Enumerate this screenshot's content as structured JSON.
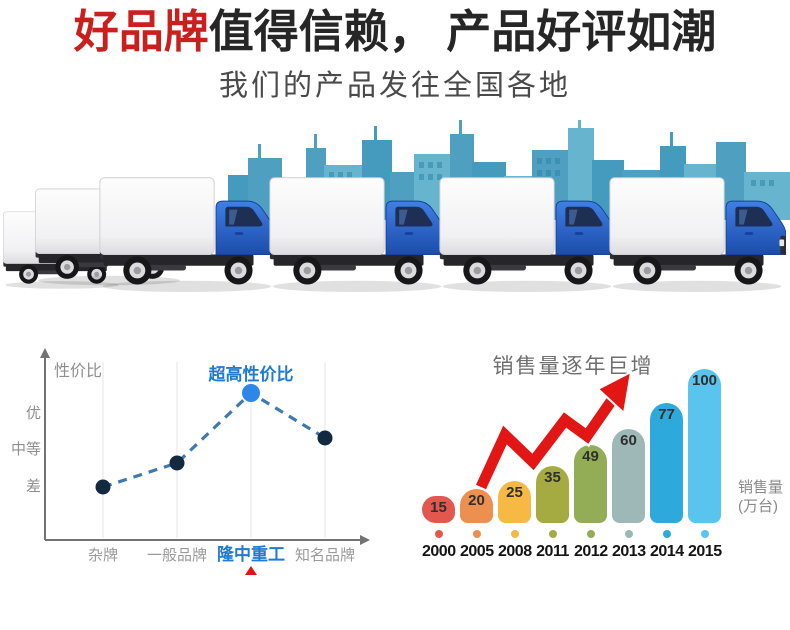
{
  "header": {
    "title_highlight": "好品牌",
    "title_rest": "值得信赖， 产品好评如潮",
    "subtitle": "我们的产品发往全国各地"
  },
  "scene": {
    "skyline_colors": [
      "#4f9fc0",
      "#66b4cd",
      "#3f93b5",
      "#7fc3d8"
    ],
    "truck_cab_color": "#2f6fd6",
    "truck_box_color": "#ffffff"
  },
  "chart_data": [
    {
      "type": "line",
      "title": "性价比",
      "annotation": "超高性价比",
      "categories": [
        "杂牌",
        "一般品牌",
        "隆中重工",
        "知名品牌"
      ],
      "values": [
        30,
        45,
        88,
        60
      ],
      "ylim": [
        0,
        100
      ],
      "y_axis_ticks": [
        "优",
        "中等",
        "差"
      ],
      "highlight_index": 2,
      "legend_position": "none",
      "grid": "vertical-only",
      "colors": {
        "line": "#3f79ad",
        "point": "#13293f",
        "highlight_point": "#2e86e8",
        "highlight_label": "#1e7ad4",
        "axis": "#737373",
        "grid": "#e4e4e4",
        "tick": "#8f8f8f",
        "pointer": "#e01414"
      }
    },
    {
      "type": "bar",
      "title": "销售量逐年巨增",
      "categories": [
        "2000",
        "2005",
        "2008",
        "2011",
        "2012",
        "2013",
        "2014",
        "2015"
      ],
      "values": [
        15,
        20,
        25,
        35,
        49,
        60,
        77,
        100
      ],
      "bar_colors": [
        "#e4574f",
        "#ed8f4e",
        "#f6b944",
        "#a5aa41",
        "#93ad56",
        "#9db8b6",
        "#2ea9dc",
        "#59c5ee"
      ],
      "value_label_color": "#2f2f2f",
      "unit_lines": [
        "销售量",
        "(万台)"
      ],
      "arrow_color": "#e31616",
      "ylim": [
        0,
        100
      ],
      "grid": "off"
    }
  ]
}
